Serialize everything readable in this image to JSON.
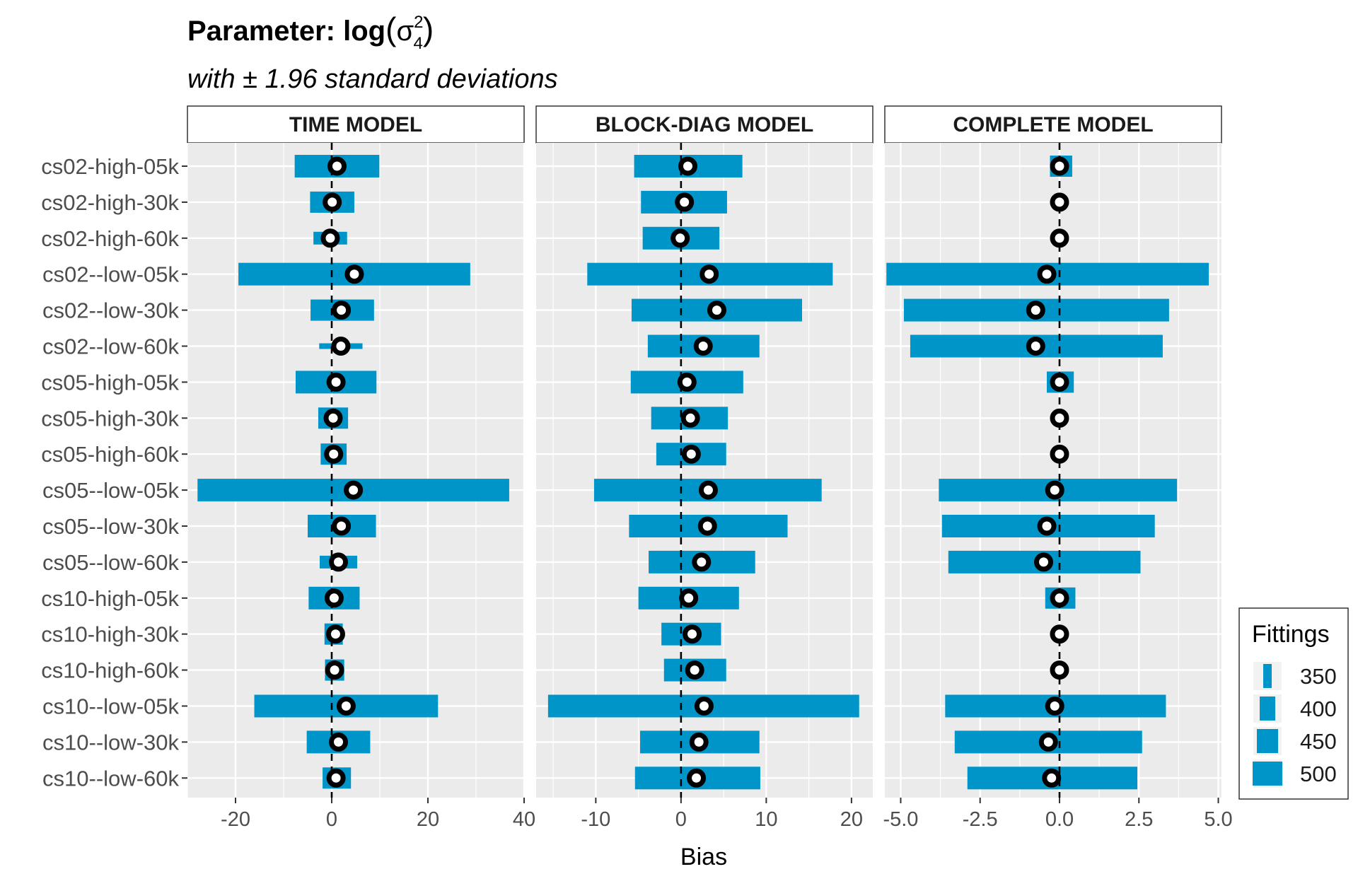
{
  "header": {
    "title_prefix": "Parameter: log",
    "title_symbol": "σ",
    "title_sup": "2",
    "title_sub": "4",
    "subtitle": "with ± 1.96 standard deviations"
  },
  "legend": {
    "title": "Fittings",
    "position": "right",
    "entries": [
      "350",
      "400",
      "450",
      "500"
    ]
  },
  "colors": {
    "bar": "#0095c8",
    "panel_bg": "#ebebeb",
    "grid": "#ffffff",
    "point_stroke": "#000000",
    "point_fill": "#ffffff"
  },
  "chart_data": {
    "type": "errorbar",
    "xlabel": "Bias",
    "ylabel": "",
    "grid": true,
    "rows": [
      "cs02-high-05k",
      "cs02-high-30k",
      "cs02-high-60k",
      "cs02--low-05k",
      "cs02--low-30k",
      "cs02--low-60k",
      "cs05-high-05k",
      "cs05-high-30k",
      "cs05-high-60k",
      "cs05--low-05k",
      "cs05--low-30k",
      "cs05--low-60k",
      "cs10-high-05k",
      "cs10-high-30k",
      "cs10-high-60k",
      "cs10--low-05k",
      "cs10--low-30k",
      "cs10--low-60k"
    ],
    "reference_line_x": 0,
    "panels": [
      {
        "name": "TIME MODEL",
        "xlim": [
          -30,
          40
        ],
        "ticks": [
          -20,
          0,
          20,
          40
        ],
        "tick_labels": [
          "-20",
          "0",
          "20",
          "40"
        ],
        "minor_ticks": [
          -30,
          -10,
          10,
          30
        ],
        "estimates": [
          1.1,
          0.1,
          -0.3,
          4.7,
          2.0,
          1.9,
          0.9,
          0.3,
          0.4,
          4.5,
          2.0,
          1.4,
          0.5,
          0.8,
          0.6,
          3.0,
          1.4,
          0.9
        ],
        "lower": [
          -7.7,
          -4.5,
          -3.8,
          -19.4,
          -4.4,
          -2.6,
          -7.5,
          -2.8,
          -2.3,
          -27.9,
          -5.0,
          -2.5,
          -4.8,
          -1.5,
          -1.4,
          -16.1,
          -5.2,
          -1.9
        ],
        "upper": [
          9.9,
          4.7,
          3.2,
          28.8,
          8.8,
          6.4,
          9.3,
          3.4,
          3.1,
          36.9,
          9.2,
          5.3,
          5.8,
          2.3,
          2.6,
          22.1,
          8.0,
          4.0
        ],
        "fittings": [
          500,
          450,
          400,
          500,
          450,
          350,
          500,
          450,
          450,
          500,
          500,
          400,
          500,
          450,
          450,
          500,
          500,
          450
        ]
      },
      {
        "name": "BLOCK-DIAG MODEL",
        "xlim": [
          -17,
          22.5
        ],
        "ticks": [
          -10,
          0,
          10,
          20
        ],
        "tick_labels": [
          "-10",
          "0",
          "10",
          "20"
        ],
        "minor_ticks": [
          -15,
          -5,
          5,
          15
        ],
        "estimates": [
          0.8,
          0.4,
          -0.1,
          3.3,
          4.2,
          2.6,
          0.7,
          1.1,
          1.2,
          3.2,
          3.1,
          2.4,
          0.9,
          1.3,
          1.6,
          2.7,
          2.1,
          1.8
        ],
        "lower": [
          -5.5,
          -4.7,
          -4.5,
          -11.0,
          -5.8,
          -3.9,
          -5.9,
          -3.5,
          -2.9,
          -10.2,
          -6.1,
          -3.8,
          -5.0,
          -2.3,
          -2.0,
          -15.6,
          -4.8,
          -5.4
        ],
        "upper": [
          7.2,
          5.4,
          4.5,
          17.8,
          14.2,
          9.2,
          7.3,
          5.5,
          5.3,
          16.5,
          12.5,
          8.7,
          6.8,
          4.7,
          5.3,
          20.9,
          9.2,
          9.3
        ],
        "fittings": [
          500,
          500,
          500,
          500,
          500,
          500,
          500,
          500,
          500,
          500,
          500,
          500,
          500,
          500,
          500,
          500,
          500,
          500
        ]
      },
      {
        "name": "COMPLETE MODEL",
        "xlim": [
          -5.5,
          5.1
        ],
        "ticks": [
          -5.0,
          -2.5,
          0.0,
          2.5,
          5.0
        ],
        "tick_labels": [
          "-5.0",
          "-2.5",
          "0.0",
          "2.5",
          "5.0"
        ],
        "minor_ticks": [
          -3.75,
          -1.25,
          1.25,
          3.75
        ],
        "estimates": [
          0.0,
          0.0,
          0.0,
          -0.4,
          -0.75,
          -0.75,
          0.0,
          0.0,
          0.0,
          -0.15,
          -0.4,
          -0.5,
          0.0,
          0.0,
          0.0,
          -0.15,
          -0.35,
          -0.25
        ],
        "lower": [
          -0.3,
          -0.15,
          -0.15,
          -5.45,
          -4.9,
          -4.7,
          -0.4,
          -0.15,
          -0.15,
          -3.8,
          -3.7,
          -3.5,
          -0.45,
          -0.15,
          -0.15,
          -3.6,
          -3.3,
          -2.9
        ],
        "upper": [
          0.4,
          0.15,
          0.15,
          4.7,
          3.45,
          3.25,
          0.45,
          0.15,
          0.15,
          3.7,
          3.0,
          2.55,
          0.5,
          0.15,
          0.15,
          3.35,
          2.6,
          2.45
        ],
        "fittings": [
          450,
          350,
          350,
          500,
          500,
          500,
          450,
          400,
          400,
          500,
          500,
          500,
          450,
          350,
          350,
          500,
          500,
          500
        ]
      }
    ]
  }
}
